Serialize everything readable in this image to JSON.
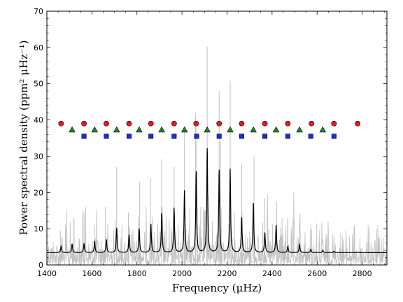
{
  "chart_data": {
    "type": "line",
    "xlabel": "Frequency (μHz)",
    "ylabel": "Power spectral density (ppm² μHz⁻¹)",
    "xlim": [
      1400,
      2910
    ],
    "ylim": [
      0,
      70
    ],
    "x_ticks": [
      1400,
      1600,
      1800,
      2000,
      2200,
      2400,
      2600,
      2800
    ],
    "y_ticks": [
      0,
      10,
      20,
      30,
      40,
      50,
      60,
      70
    ],
    "grid": false,
    "legend": "none",
    "background_level": 3.4,
    "peaks": [
      {
        "x": 1463,
        "y": 5.1
      },
      {
        "x": 1512,
        "y": 5.8
      },
      {
        "x": 1565,
        "y": 5.9
      },
      {
        "x": 1612,
        "y": 6.6
      },
      {
        "x": 1664,
        "y": 7.0
      },
      {
        "x": 1710,
        "y": 10.2
      },
      {
        "x": 1765,
        "y": 8.2
      },
      {
        "x": 1810,
        "y": 10.0
      },
      {
        "x": 1862,
        "y": 11.3
      },
      {
        "x": 1910,
        "y": 14.4
      },
      {
        "x": 1965,
        "y": 15.7
      },
      {
        "x": 2011,
        "y": 20.5
      },
      {
        "x": 2063,
        "y": 25.7
      },
      {
        "x": 2112,
        "y": 32.2
      },
      {
        "x": 2165,
        "y": 26.2
      },
      {
        "x": 2214,
        "y": 26.5
      },
      {
        "x": 2265,
        "y": 13.1
      },
      {
        "x": 2317,
        "y": 17.1
      },
      {
        "x": 2368,
        "y": 8.9
      },
      {
        "x": 2418,
        "y": 11.0
      },
      {
        "x": 2470,
        "y": 5.1
      },
      {
        "x": 2522,
        "y": 5.7
      },
      {
        "x": 2572,
        "y": 4.3
      },
      {
        "x": 2625,
        "y": 4.1
      },
      {
        "x": 2675,
        "y": 3.8
      },
      {
        "x": 2780,
        "y": 3.6
      }
    ],
    "raw_spikes": [
      {
        "x": 1460,
        "y": 9.5
      },
      {
        "x": 1520,
        "y": 13.0
      },
      {
        "x": 1565,
        "y": 14.5
      },
      {
        "x": 1612,
        "y": 11.0
      },
      {
        "x": 1660,
        "y": 16.0
      },
      {
        "x": 1710,
        "y": 27.0
      },
      {
        "x": 1762,
        "y": 14.5
      },
      {
        "x": 1812,
        "y": 22.8
      },
      {
        "x": 1860,
        "y": 24.0
      },
      {
        "x": 1910,
        "y": 29.2
      },
      {
        "x": 1965,
        "y": 27.0
      },
      {
        "x": 2011,
        "y": 38.0
      },
      {
        "x": 2060,
        "y": 42.0
      },
      {
        "x": 2066,
        "y": 38.0
      },
      {
        "x": 2112,
        "y": 60.2
      },
      {
        "x": 2165,
        "y": 48.0
      },
      {
        "x": 2171,
        "y": 34.0
      },
      {
        "x": 2214,
        "y": 50.8
      },
      {
        "x": 2265,
        "y": 28.0
      },
      {
        "x": 2320,
        "y": 30.0
      },
      {
        "x": 2368,
        "y": 18.5
      },
      {
        "x": 2420,
        "y": 17.5
      },
      {
        "x": 2470,
        "y": 13.0
      },
      {
        "x": 2522,
        "y": 11.5
      },
      {
        "x": 2575,
        "y": 9.8
      },
      {
        "x": 2640,
        "y": 8.5
      }
    ],
    "markers": {
      "circles": {
        "color": "#e8191e",
        "y": 39.0,
        "x": [
          1463,
          1565,
          1664,
          1765,
          1862,
          1965,
          2063,
          2165,
          2265,
          2368,
          2470,
          2575,
          2675,
          2780
        ]
      },
      "triangles": {
        "color": "#1a8a2a",
        "y": 37.3,
        "x": [
          1512,
          1612,
          1710,
          1810,
          1910,
          2011,
          2112,
          2214,
          2317,
          2418,
          2522,
          2625
        ]
      },
      "squares": {
        "color": "#1a2ed8",
        "y": 35.5,
        "x": [
          1565,
          1664,
          1765,
          1862,
          1965,
          2065,
          2165,
          2265,
          2368,
          2470,
          2572,
          2675
        ]
      }
    },
    "colors": {
      "raw_spectrum": "#c0c0c0",
      "smoothed_spectrum": "#000000"
    }
  }
}
